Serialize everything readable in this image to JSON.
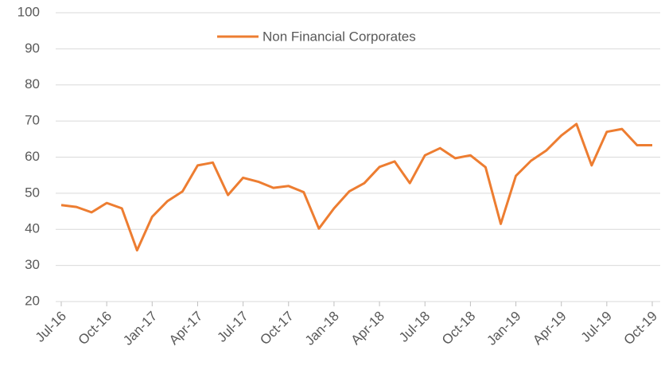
{
  "chart_data": {
    "type": "line",
    "categories": [
      "Jul-16",
      null,
      null,
      "Oct-16",
      null,
      null,
      "Jan-17",
      null,
      null,
      "Apr-17",
      null,
      null,
      "Jul-17",
      null,
      null,
      "Oct-17",
      null,
      null,
      "Jan-18",
      null,
      null,
      "Apr-18",
      null,
      null,
      "Jul-18",
      null,
      null,
      "Oct-18",
      null,
      null,
      "Jan-19",
      null,
      null,
      "Apr-19",
      null,
      null,
      "Jul-19",
      null,
      null,
      "Oct-19"
    ],
    "series": [
      {
        "name": "Non Financial Corporates",
        "color": "#ed7d31",
        "values": [
          46.7,
          46.2,
          44.7,
          47.3,
          45.8,
          34.2,
          43.5,
          47.8,
          50.5,
          57.7,
          58.5,
          49.5,
          54.3,
          53.2,
          51.5,
          52,
          50.3,
          40.2,
          45.8,
          50.5,
          52.8,
          57.3,
          58.8,
          52.8,
          60.5,
          62.5,
          59.7,
          60.5,
          57.2,
          41.5,
          54.8,
          59,
          61.8,
          66,
          69.2,
          57.7,
          67,
          67.8,
          63.3,
          63.3
        ]
      }
    ],
    "ylim": [
      20,
      100
    ],
    "yticks": [
      20,
      30,
      40,
      50,
      60,
      70,
      80,
      90,
      100
    ],
    "grid": true,
    "legend": "top"
  }
}
